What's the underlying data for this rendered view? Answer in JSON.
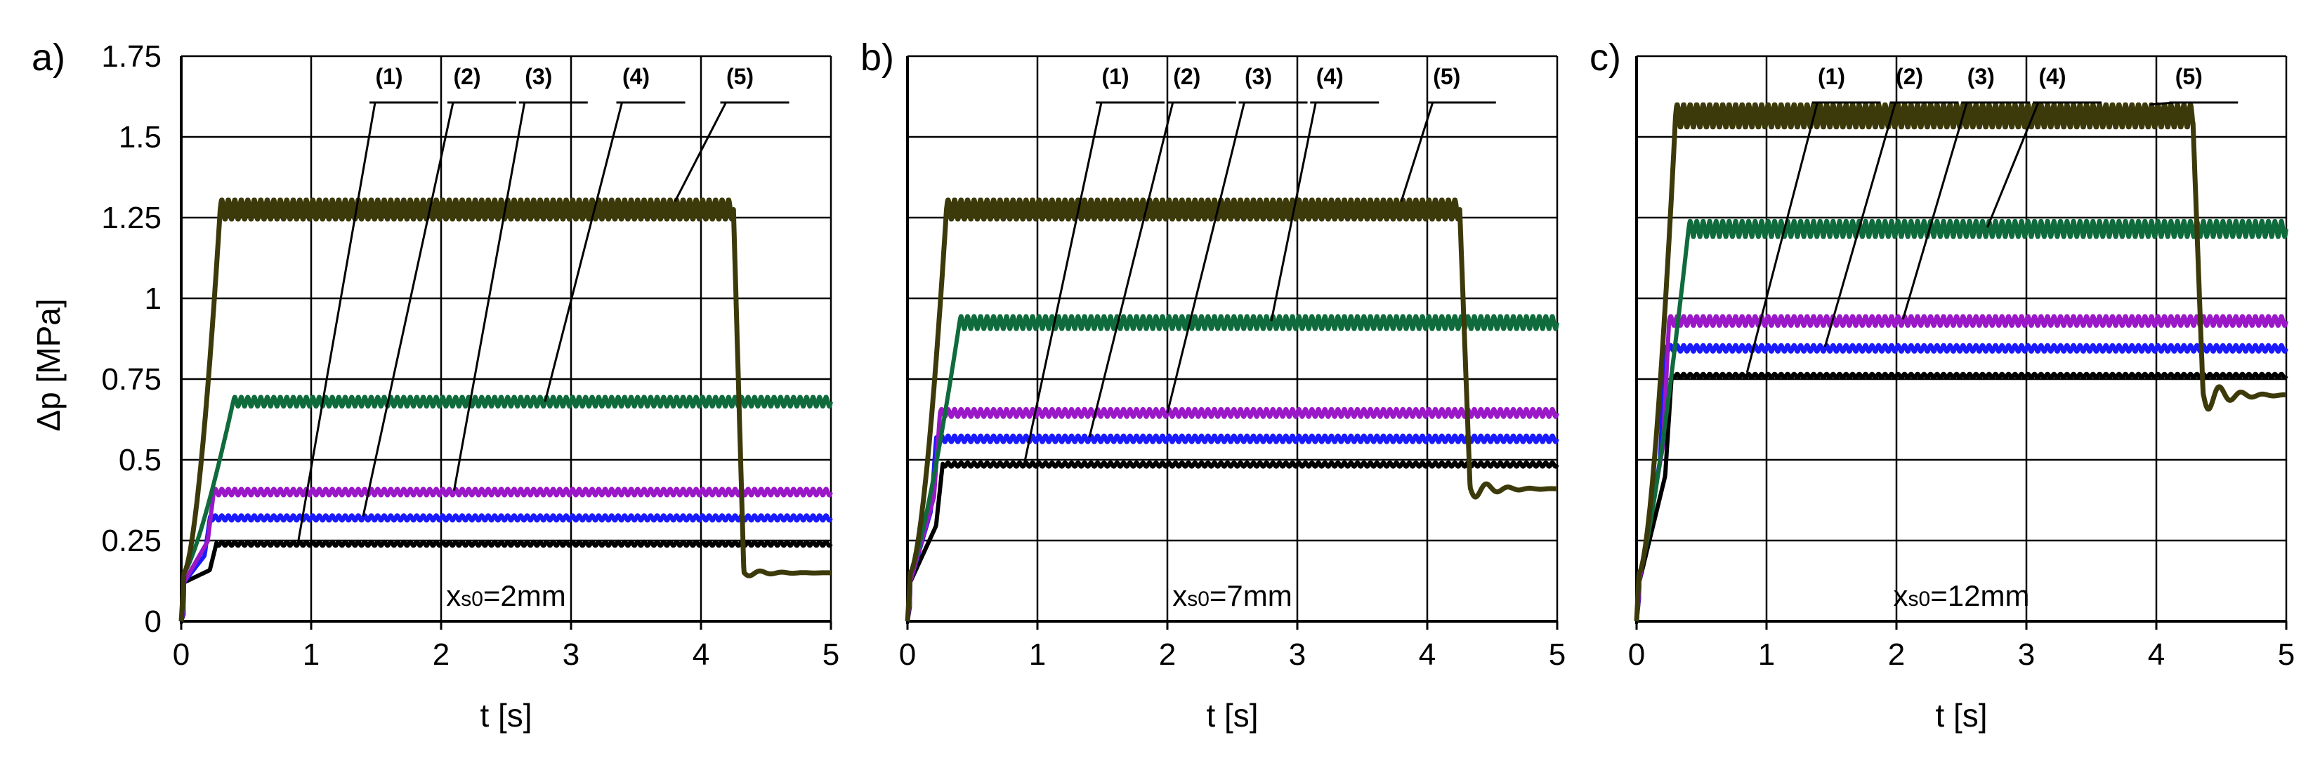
{
  "figure": {
    "ylabel": "Δp [MPa]",
    "xlabel": "t [s]"
  },
  "colors": {
    "grid": "#000000",
    "series_1": "#000000",
    "series_2": "#1a1aff",
    "series_3": "#9a18c8",
    "series_4": "#0f6b3c",
    "series_5": "#3c3a0a"
  },
  "chart_data": [
    {
      "type": "line",
      "panel": "a)",
      "annotation": {
        "prefix": "x",
        "sub": "s0",
        "suffix": "=2mm"
      },
      "xlabel": "t [s]",
      "ylabel": "Δp [MPa]",
      "xlim": [
        0,
        5
      ],
      "ylim": [
        0,
        1.75
      ],
      "xticks": [
        "0",
        "1",
        "2",
        "3",
        "4",
        "5"
      ],
      "yticks": [
        "0",
        "0.25",
        "0.5",
        "0.75",
        "1",
        "1.25",
        "1.5",
        "1.75"
      ],
      "grid": true,
      "series": [
        {
          "name": "(1)",
          "steady": 0.24,
          "rise_end": 0.27,
          "amp": 0.006,
          "drop": null,
          "final": null,
          "label_x": 1.6,
          "label_target": [
            0.9,
            0.245
          ]
        },
        {
          "name": "(2)",
          "steady": 0.32,
          "rise_end": 0.22,
          "amp": 0.008,
          "drop": null,
          "final": null,
          "label_x": 2.2,
          "label_target": [
            1.4,
            0.325
          ]
        },
        {
          "name": "(3)",
          "steady": 0.4,
          "rise_end": 0.25,
          "amp": 0.01,
          "drop": null,
          "final": null,
          "label_x": 2.75,
          "label_target": [
            2.1,
            0.405
          ]
        },
        {
          "name": "(4)",
          "steady": 0.68,
          "rise_end": 0.4,
          "amp": 0.015,
          "drop": null,
          "final": null,
          "label_x": 3.5,
          "label_target": [
            2.8,
            0.68
          ]
        },
        {
          "name": "(5)",
          "steady": 1.275,
          "rise_end": 0.3,
          "amp": 0.03,
          "drop": 4.25,
          "final": 0.15,
          "label_x": 4.3,
          "label_target": [
            3.8,
            1.3
          ]
        }
      ]
    },
    {
      "type": "line",
      "panel": "b)",
      "annotation": {
        "prefix": "x",
        "sub": "s0",
        "suffix": "=7mm"
      },
      "xlabel": "t [s]",
      "ylabel": "",
      "xlim": [
        0,
        5
      ],
      "ylim": [
        0,
        1.75
      ],
      "xticks": [
        "0",
        "1",
        "2",
        "3",
        "4",
        "5"
      ],
      "yticks": [],
      "grid": true,
      "series": [
        {
          "name": "(1)",
          "steady": 0.485,
          "rise_end": 0.27,
          "amp": 0.006,
          "drop": null,
          "final": null,
          "label_x": 1.6,
          "label_target": [
            0.9,
            0.49
          ]
        },
        {
          "name": "(2)",
          "steady": 0.565,
          "rise_end": 0.22,
          "amp": 0.01,
          "drop": null,
          "final": null,
          "label_x": 2.15,
          "label_target": [
            1.4,
            0.57
          ]
        },
        {
          "name": "(3)",
          "steady": 0.645,
          "rise_end": 0.25,
          "amp": 0.012,
          "drop": null,
          "final": null,
          "label_x": 2.7,
          "label_target": [
            2.0,
            0.645
          ]
        },
        {
          "name": "(4)",
          "steady": 0.925,
          "rise_end": 0.4,
          "amp": 0.02,
          "drop": null,
          "final": null,
          "label_x": 3.25,
          "label_target": [
            2.8,
            0.93
          ]
        },
        {
          "name": "(5)",
          "steady": 1.275,
          "rise_end": 0.3,
          "amp": 0.03,
          "drop": 4.25,
          "final": 0.41,
          "label_x": 4.15,
          "label_target": [
            3.8,
            1.3
          ]
        }
      ]
    },
    {
      "type": "line",
      "panel": "c)",
      "annotation": {
        "prefix": "x",
        "sub": "s0",
        "suffix": "=12mm"
      },
      "xlabel": "t [s]",
      "ylabel": "",
      "xlim": [
        0,
        5
      ],
      "ylim": [
        0,
        1.75
      ],
      "xticks": [
        "0",
        "1",
        "2",
        "3",
        "4",
        "5"
      ],
      "yticks": [],
      "grid": true,
      "series": [
        {
          "name": "(1)",
          "steady": 0.76,
          "rise_end": 0.27,
          "amp": 0.006,
          "drop": null,
          "final": null,
          "label_x": 1.5,
          "label_target": [
            0.85,
            0.77
          ]
        },
        {
          "name": "(2)",
          "steady": 0.845,
          "rise_end": 0.22,
          "amp": 0.01,
          "drop": null,
          "final": null,
          "label_x": 2.1,
          "label_target": [
            1.45,
            0.85
          ]
        },
        {
          "name": "(3)",
          "steady": 0.93,
          "rise_end": 0.25,
          "amp": 0.015,
          "drop": null,
          "final": null,
          "label_x": 2.65,
          "label_target": [
            2.05,
            0.935
          ]
        },
        {
          "name": "(4)",
          "steady": 1.215,
          "rise_end": 0.4,
          "amp": 0.025,
          "drop": null,
          "final": null,
          "label_x": 3.2,
          "label_target": [
            2.7,
            1.22
          ]
        },
        {
          "name": "(5)",
          "steady": 1.565,
          "rise_end": 0.3,
          "amp": 0.035,
          "drop": 4.28,
          "final": 0.7,
          "label_x": 4.25,
          "label_target": [
            3.95,
            1.6
          ]
        }
      ]
    }
  ]
}
